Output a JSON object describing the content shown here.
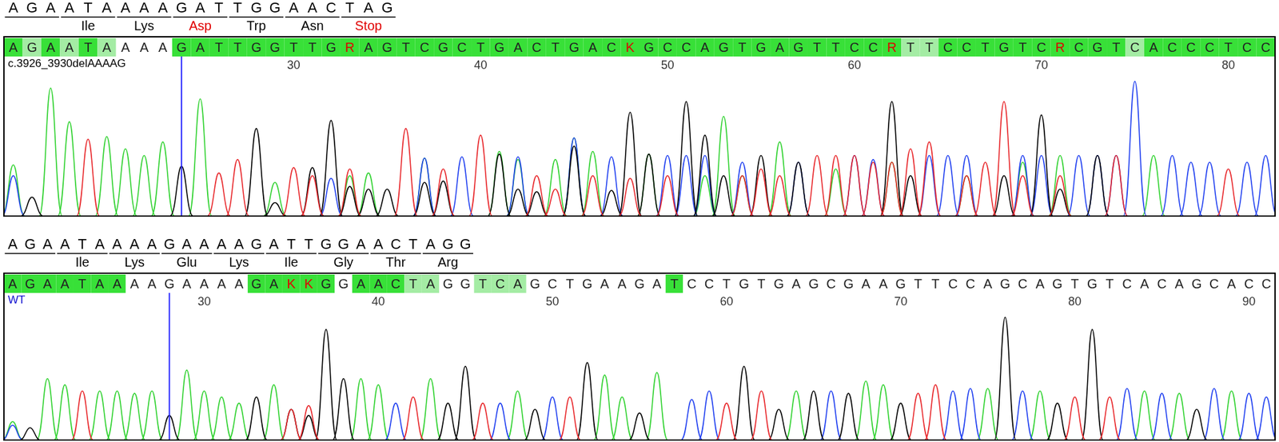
{
  "chart_data": [
    {
      "type": "chromatogram",
      "title": "c.3926_3930delAAAAG",
      "x": [
        15,
        16,
        17,
        18,
        19,
        20,
        21,
        22,
        23,
        24,
        25,
        26,
        27,
        28,
        29,
        30,
        31,
        32,
        33,
        34,
        35,
        36,
        37,
        38,
        39,
        40,
        41,
        42,
        43,
        44,
        45,
        46,
        47,
        48,
        49,
        50,
        51,
        52,
        53,
        54,
        55,
        56,
        57,
        58,
        59,
        60,
        61,
        62,
        63,
        64,
        65,
        66,
        67,
        68,
        69,
        70,
        71,
        72,
        73,
        74,
        75,
        76,
        77,
        78,
        79,
        80,
        81,
        82
      ],
      "base_calls": [
        "A",
        "G",
        "A",
        "A",
        "T",
        "A",
        "A",
        "A",
        "A",
        "G",
        "A",
        "T",
        "T",
        "G",
        "G",
        "T",
        "T",
        "G",
        "R",
        "A",
        "G",
        "T",
        "C",
        "G",
        "C",
        "T",
        "G",
        "A",
        "C",
        "T",
        "G",
        "A",
        "C",
        "K",
        "G",
        "C",
        "C",
        "A",
        "G",
        "T",
        "G",
        "A",
        "G",
        "T",
        "T",
        "C",
        "C",
        "R",
        "T",
        "T",
        "C",
        "C",
        "T",
        "G",
        "T",
        "C",
        "R",
        "C",
        "G",
        "T",
        "C",
        "A",
        "C",
        "C",
        "C",
        "T",
        "C",
        "C"
      ],
      "colors": [
        "#38e038",
        "#a4eca4",
        "#38e038",
        "#a4eca4",
        "#38e038",
        "#a4eca4",
        "#ffffff",
        "#ffffff",
        "#ffffff",
        "#38e038",
        "#38e038",
        "#38e038",
        "#38e038",
        "#38e038",
        "#38e038",
        "#38e038",
        "#38e038",
        "#38e038",
        "#38e038",
        "#38e038",
        "#38e038",
        "#38e038",
        "#38e038",
        "#38e038",
        "#38e038",
        "#38e038",
        "#38e038",
        "#38e038",
        "#38e038",
        "#38e038",
        "#38e038",
        "#38e038",
        "#38e038",
        "#38e038",
        "#38e038",
        "#38e038",
        "#38e038",
        "#38e038",
        "#38e038",
        "#38e038",
        "#38e038",
        "#38e038",
        "#38e038",
        "#38e038",
        "#38e038",
        "#38e038",
        "#38e038",
        "#38e038",
        "#a4eca4",
        "#a4eca4",
        "#38e038",
        "#38e038",
        "#38e038",
        "#38e038",
        "#38e038",
        "#38e038",
        "#38e038",
        "#38e038",
        "#38e038",
        "#38e038",
        "#a4eca4",
        "#38e038",
        "#38e038",
        "#38e038",
        "#38e038",
        "#38e038",
        "#38e038",
        "#38e038"
      ],
      "series": [
        {
          "name": "A",
          "color": "#2fd22f",
          "values": [
            38,
            0,
            95,
            70,
            0,
            59,
            50,
            45,
            55,
            0,
            87,
            0,
            0,
            0,
            25,
            0,
            0,
            0,
            30,
            32,
            0,
            0,
            43,
            0,
            0,
            0,
            48,
            42,
            0,
            42,
            58,
            48,
            0,
            0,
            46,
            0,
            0,
            30,
            74,
            30,
            0,
            55,
            0,
            0,
            35,
            0,
            0,
            40,
            0,
            0,
            0,
            30,
            0,
            0,
            40,
            0,
            45,
            0,
            0,
            0,
            0,
            45,
            0,
            0,
            0,
            0,
            0,
            0
          ]
        },
        {
          "name": "C",
          "color": "#1f3ff0",
          "values": [
            30,
            0,
            0,
            0,
            0,
            0,
            0,
            0,
            0,
            0,
            0,
            0,
            0,
            0,
            0,
            0,
            0,
            28,
            0,
            0,
            0,
            0,
            43,
            0,
            44,
            0,
            0,
            44,
            0,
            0,
            58,
            0,
            44,
            0,
            0,
            45,
            45,
            45,
            0,
            40,
            0,
            0,
            40,
            0,
            0,
            45,
            42,
            0,
            0,
            45,
            45,
            45,
            0,
            0,
            45,
            45,
            0,
            45,
            45,
            45,
            100,
            0,
            45,
            40,
            40,
            0,
            40,
            45
          ]
        },
        {
          "name": "G",
          "color": "#000000",
          "values": [
            0,
            14,
            0,
            0,
            0,
            0,
            0,
            0,
            0,
            37,
            0,
            0,
            0,
            65,
            10,
            0,
            36,
            71,
            22,
            20,
            20,
            0,
            25,
            26,
            0,
            0,
            46,
            20,
            18,
            0,
            52,
            0,
            19,
            77,
            46,
            0,
            85,
            60,
            30,
            0,
            45,
            0,
            40,
            0,
            0,
            0,
            0,
            85,
            30,
            0,
            0,
            0,
            0,
            30,
            0,
            75,
            20,
            0,
            45,
            0,
            0,
            0,
            0,
            0,
            0,
            0,
            0,
            0
          ]
        },
        {
          "name": "T",
          "color": "#e8262a",
          "values": [
            0,
            0,
            0,
            0,
            57,
            0,
            0,
            0,
            0,
            0,
            0,
            32,
            42,
            0,
            0,
            36,
            30,
            0,
            35,
            0,
            0,
            65,
            0,
            35,
            0,
            60,
            0,
            0,
            30,
            20,
            0,
            30,
            0,
            28,
            0,
            30,
            0,
            0,
            0,
            30,
            35,
            30,
            0,
            45,
            45,
            45,
            40,
            40,
            50,
            55,
            0,
            30,
            40,
            85,
            30,
            0,
            30,
            0,
            0,
            45,
            0,
            0,
            0,
            0,
            0,
            35,
            0,
            0
          ]
        }
      ],
      "xlim": [
        14.5,
        82.5
      ],
      "xticks": [
        30,
        40,
        50,
        60,
        70,
        80
      ],
      "ylim": [
        0,
        105
      ],
      "tick_labels": "x",
      "cursor": 24,
      "codons": [
        {
          "codon": "AGA",
          "start": 15
        },
        {
          "codon": "ATA",
          "amino_acid": "Ile",
          "start": 18
        },
        {
          "codon": "AAA",
          "amino_acid": "Lys",
          "start": 21
        },
        {
          "codon": "GAT",
          "amino_acid": "Asp",
          "start": 24,
          "color": "#e00000"
        },
        {
          "codon": "TGG",
          "amino_acid": "Trp",
          "start": 27
        },
        {
          "codon": "AAC",
          "amino_acid": "Asn",
          "start": 30
        },
        {
          "codon": "TAG",
          "amino_acid": "Stop",
          "start": 33,
          "color": "#e00000"
        }
      ]
    },
    {
      "type": "chromatogram",
      "title": "WT",
      "x": [
        19,
        20,
        21,
        22,
        23,
        24,
        25,
        26,
        27,
        28,
        29,
        30,
        31,
        32,
        33,
        34,
        35,
        36,
        37,
        38,
        39,
        40,
        41,
        42,
        43,
        44,
        45,
        46,
        47,
        48,
        49,
        50,
        51,
        52,
        53,
        54,
        55,
        56,
        57,
        58,
        59,
        60,
        61,
        62,
        63,
        64,
        65,
        66,
        67,
        68,
        69,
        70,
        71,
        72,
        73,
        74,
        75,
        76,
        77,
        78,
        79,
        80,
        81,
        82,
        83,
        84,
        85,
        86,
        87,
        88,
        89,
        90,
        91
      ],
      "base_calls": [
        "A",
        "G",
        "A",
        "A",
        "T",
        "A",
        "A",
        "A",
        "A",
        "G",
        "A",
        "A",
        "A",
        "A",
        "G",
        "A",
        "K",
        "K",
        "G",
        "G",
        "A",
        "A",
        "C",
        "T",
        "A",
        "G",
        "G",
        "T",
        "C",
        "A",
        "G",
        "C",
        "T",
        "G",
        "A",
        "A",
        "G",
        "A",
        "T",
        "C",
        "C",
        "T",
        "G",
        "T",
        "G",
        "A",
        "G",
        "C",
        "G",
        "A",
        "A",
        "G",
        "T",
        "T",
        "C",
        "C",
        "A",
        "G",
        "C",
        "A",
        "G",
        "T",
        "G",
        "T",
        "C",
        "A",
        "C",
        "A",
        "G",
        "C",
        "A",
        "C",
        "C"
      ],
      "colors": [
        "#38e038",
        "#38e038",
        "#38e038",
        "#38e038",
        "#38e038",
        "#38e038",
        "#38e038",
        "#ffffff",
        "#ffffff",
        "#ffffff",
        "#ffffff",
        "#ffffff",
        "#ffffff",
        "#ffffff",
        "#38e038",
        "#38e038",
        "#38e038",
        "#38e038",
        "#38e038",
        "#ffffff",
        "#38e038",
        "#38e038",
        "#38e038",
        "#a4eca4",
        "#a4eca4",
        "#ffffff",
        "#ffffff",
        "#a4eca4",
        "#a4eca4",
        "#a4eca4",
        "#ffffff",
        "#ffffff",
        "#ffffff",
        "#ffffff",
        "#ffffff",
        "#ffffff",
        "#ffffff",
        "#ffffff",
        "#38e038",
        "#ffffff",
        "#ffffff",
        "#ffffff",
        "#ffffff",
        "#ffffff",
        "#ffffff",
        "#ffffff",
        "#ffffff",
        "#ffffff",
        "#ffffff",
        "#ffffff",
        "#ffffff",
        "#ffffff",
        "#ffffff",
        "#ffffff",
        "#ffffff",
        "#ffffff",
        "#ffffff",
        "#ffffff",
        "#ffffff",
        "#ffffff",
        "#ffffff",
        "#ffffff",
        "#ffffff",
        "#ffffff",
        "#ffffff",
        "#ffffff",
        "#ffffff",
        "#ffffff",
        "#ffffff",
        "#ffffff",
        "#ffffff",
        "#ffffff",
        "#ffffff"
      ],
      "series": [
        {
          "name": "A",
          "color": "#2fd22f",
          "values": [
            15,
            0,
            50,
            45,
            0,
            40,
            40,
            38,
            40,
            0,
            57,
            40,
            35,
            30,
            0,
            45,
            0,
            0,
            0,
            0,
            50,
            45,
            0,
            0,
            50,
            0,
            0,
            0,
            0,
            40,
            0,
            0,
            0,
            0,
            53,
            35,
            0,
            55,
            0,
            0,
            0,
            0,
            0,
            0,
            0,
            40,
            0,
            0,
            0,
            48,
            45,
            0,
            0,
            0,
            0,
            0,
            42,
            0,
            0,
            40,
            0,
            0,
            0,
            0,
            0,
            40,
            0,
            38,
            0,
            0,
            40,
            0,
            0
          ]
        },
        {
          "name": "C",
          "color": "#1f3ff0",
          "values": [
            12,
            0,
            0,
            0,
            0,
            0,
            0,
            0,
            0,
            0,
            0,
            0,
            0,
            0,
            0,
            0,
            0,
            0,
            0,
            0,
            0,
            0,
            30,
            0,
            0,
            0,
            0,
            0,
            30,
            0,
            0,
            35,
            0,
            0,
            0,
            0,
            0,
            0,
            0,
            33,
            40,
            0,
            0,
            0,
            0,
            0,
            0,
            40,
            0,
            0,
            0,
            0,
            0,
            0,
            40,
            42,
            0,
            0,
            40,
            0,
            0,
            0,
            0,
            0,
            42,
            0,
            38,
            0,
            0,
            42,
            0,
            38,
            35
          ]
        },
        {
          "name": "G",
          "color": "#000000",
          "values": [
            0,
            10,
            0,
            0,
            0,
            0,
            0,
            0,
            0,
            20,
            0,
            0,
            0,
            0,
            35,
            0,
            25,
            20,
            90,
            50,
            0,
            0,
            0,
            0,
            0,
            30,
            60,
            0,
            0,
            0,
            25,
            0,
            0,
            63,
            0,
            0,
            22,
            0,
            0,
            0,
            0,
            0,
            60,
            0,
            25,
            0,
            40,
            0,
            38,
            0,
            0,
            30,
            0,
            0,
            0,
            0,
            0,
            100,
            0,
            0,
            30,
            0,
            90,
            0,
            0,
            0,
            0,
            0,
            25,
            0,
            0,
            0,
            0
          ]
        },
        {
          "name": "T",
          "color": "#e8262a",
          "values": [
            0,
            0,
            0,
            0,
            40,
            0,
            0,
            0,
            0,
            0,
            0,
            0,
            0,
            0,
            0,
            0,
            25,
            28,
            0,
            0,
            0,
            0,
            0,
            35,
            0,
            0,
            0,
            30,
            0,
            0,
            0,
            0,
            35,
            0,
            0,
            0,
            0,
            0,
            0,
            0,
            0,
            30,
            0,
            40,
            0,
            0,
            0,
            0,
            0,
            0,
            0,
            0,
            38,
            45,
            0,
            0,
            0,
            0,
            0,
            0,
            0,
            35,
            0,
            35,
            0,
            0,
            0,
            0,
            0,
            0,
            0,
            0,
            0
          ]
        }
      ],
      "xlim": [
        18.5,
        91.5
      ],
      "xticks": [
        30,
        40,
        50,
        60,
        70,
        80,
        90
      ],
      "ylim": [
        0,
        105
      ],
      "tick_labels": "x",
      "cursor": 28,
      "codons": [
        {
          "codon": "AGA",
          "start": 19
        },
        {
          "codon": "ATA",
          "amino_acid": "Ile",
          "start": 22
        },
        {
          "codon": "AAA",
          "amino_acid": "Lys",
          "start": 25
        },
        {
          "codon": "GAA",
          "amino_acid": "Glu",
          "start": 28
        },
        {
          "codon": "AAG",
          "amino_acid": "Lys",
          "start": 31
        },
        {
          "codon": "ATT",
          "amino_acid": "Ile",
          "start": 34
        },
        {
          "codon": "GGA",
          "amino_acid": "Gly",
          "start": 37
        },
        {
          "codon": "ACT",
          "amino_acid": "Thr",
          "start": 40
        },
        {
          "codon": "AGG",
          "amino_acid": "Arg",
          "start": 43
        }
      ]
    }
  ]
}
